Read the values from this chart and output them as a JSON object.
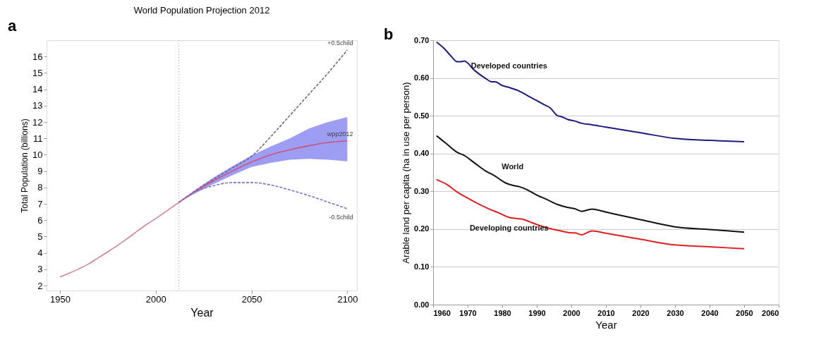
{
  "chart_data": [
    {
      "type": "line",
      "title": "World Population Projection 2012",
      "xlabel": "Year",
      "ylabel": "Total Population (billions)",
      "annotations": [
        "a"
      ],
      "xlim": [
        1943,
        2105
      ],
      "xticks": [
        1950,
        2000,
        2050,
        2100
      ],
      "ylim": [
        1.7,
        17
      ],
      "yticks": [
        2,
        3,
        4,
        5,
        6,
        7,
        8,
        9,
        10,
        11,
        12,
        13,
        14,
        15,
        16
      ],
      "grid": false,
      "legend": false,
      "ref_lines": [
        {
          "axis": "x",
          "value": 2012,
          "color": "#9a9ac8",
          "line_style": "dotted"
        }
      ],
      "series": [
        {
          "color": "#d4849a",
          "line_style": "solid",
          "x": [
            1950,
            1955,
            1960,
            1965,
            1970,
            1975,
            1980,
            1985,
            1990,
            1995,
            2000,
            2005,
            2012
          ],
          "values": [
            2.53,
            2.77,
            3.03,
            3.33,
            3.7,
            4.07,
            4.45,
            4.86,
            5.3,
            5.72,
            6.1,
            6.5,
            7.08
          ]
        },
        {
          "name": "+0.5child",
          "color": "#6e6890",
          "line_style": "dashed",
          "x": [
            2012,
            2020,
            2030,
            2040,
            2050,
            2060,
            2070,
            2080,
            2090,
            2100
          ],
          "values": [
            7.08,
            7.75,
            8.5,
            9.2,
            9.9,
            11.1,
            12.4,
            13.7,
            15.0,
            16.4
          ]
        },
        {
          "name": "wpp2012",
          "color": "#d0507a",
          "line_style": "solid",
          "x": [
            2012,
            2020,
            2030,
            2040,
            2050,
            2060,
            2070,
            2080,
            2090,
            2100
          ],
          "values": [
            7.08,
            7.7,
            8.4,
            9.0,
            9.55,
            10.0,
            10.3,
            10.55,
            10.75,
            10.85
          ],
          "lower": [
            7.08,
            7.6,
            8.2,
            8.75,
            9.25,
            9.5,
            9.7,
            9.75,
            9.7,
            9.6
          ],
          "upper": [
            7.08,
            7.8,
            8.6,
            9.3,
            9.95,
            10.5,
            11.0,
            11.6,
            12.0,
            12.3
          ]
        },
        {
          "name": "-0.5child",
          "color": "#8070c8",
          "line_style": "dashed",
          "x": [
            2012,
            2020,
            2030,
            2040,
            2050,
            2060,
            2070,
            2080,
            2090,
            2100
          ],
          "values": [
            7.08,
            7.7,
            8.1,
            8.3,
            8.3,
            8.15,
            7.85,
            7.5,
            7.1,
            6.7
          ]
        }
      ]
    },
    {
      "type": "line",
      "xlabel": "Year",
      "ylabel": "Arable land per capita (ha in use per person)",
      "annotations": [
        "b"
      ],
      "xlim": [
        1960,
        2060
      ],
      "xticks": [
        1960,
        1970,
        1980,
        1990,
        2000,
        2010,
        2020,
        2030,
        2040,
        2050,
        2060
      ],
      "ylim": [
        0,
        0.7
      ],
      "yticks": [
        {
          "value": 0,
          "label": "0.00"
        },
        {
          "value": 0.1,
          "label": "0.10"
        },
        {
          "value": 0.2,
          "label": "0.20"
        },
        {
          "value": 0.3,
          "label": "0.30"
        },
        {
          "value": 0.4,
          "label": "0.40"
        },
        {
          "value": 0.5,
          "label": "0.50"
        },
        {
          "value": 0.6,
          "label": "0.60"
        },
        {
          "value": 0.7,
          "label": "0.70"
        }
      ],
      "grid": "y",
      "legend": false,
      "series": [
        {
          "name": "Developed countries",
          "color": "#1c1c80",
          "line_style": "solid",
          "x": [
            1961,
            1963,
            1965,
            1967,
            1968,
            1969,
            1972,
            1975,
            1977,
            1978,
            1980,
            1982,
            1985,
            1988,
            1990,
            1992,
            1994,
            1996,
            1997,
            1999,
            2001,
            2003,
            2006,
            2010,
            2020,
            2030,
            2040,
            2050
          ],
          "values": [
            0.695,
            0.68,
            0.66,
            0.643,
            0.643,
            0.645,
            0.62,
            0.6,
            0.59,
            0.59,
            0.58,
            0.575,
            0.565,
            0.55,
            0.54,
            0.53,
            0.52,
            0.5,
            0.498,
            0.49,
            0.486,
            0.48,
            0.476,
            0.47,
            0.455,
            0.44,
            0.435,
            0.431
          ]
        },
        {
          "name": "World",
          "color": "#111111",
          "line_style": "solid",
          "x": [
            1961,
            1964,
            1967,
            1969,
            1972,
            1975,
            1978,
            1981,
            1983,
            1985,
            1987,
            1990,
            1993,
            1996,
            1999,
            2001,
            2003,
            2006,
            2010,
            2020,
            2030,
            2040,
            2050
          ],
          "values": [
            0.447,
            0.425,
            0.403,
            0.395,
            0.375,
            0.355,
            0.34,
            0.322,
            0.316,
            0.312,
            0.305,
            0.29,
            0.278,
            0.265,
            0.257,
            0.254,
            0.247,
            0.253,
            0.245,
            0.225,
            0.206,
            0.199,
            0.192
          ]
        },
        {
          "name": "Developing countries",
          "color": "#e02020",
          "line_style": "solid",
          "x": [
            1961,
            1964,
            1967,
            1970,
            1973,
            1976,
            1979,
            1982,
            1984,
            1986,
            1988,
            1991,
            1994,
            1997,
            2000,
            2001,
            2003,
            2006,
            2010,
            2020,
            2030,
            2040,
            2050
          ],
          "values": [
            0.331,
            0.318,
            0.298,
            0.282,
            0.267,
            0.254,
            0.243,
            0.231,
            0.228,
            0.226,
            0.219,
            0.209,
            0.201,
            0.195,
            0.19,
            0.19,
            0.185,
            0.195,
            0.189,
            0.173,
            0.158,
            0.153,
            0.148
          ]
        }
      ]
    }
  ]
}
